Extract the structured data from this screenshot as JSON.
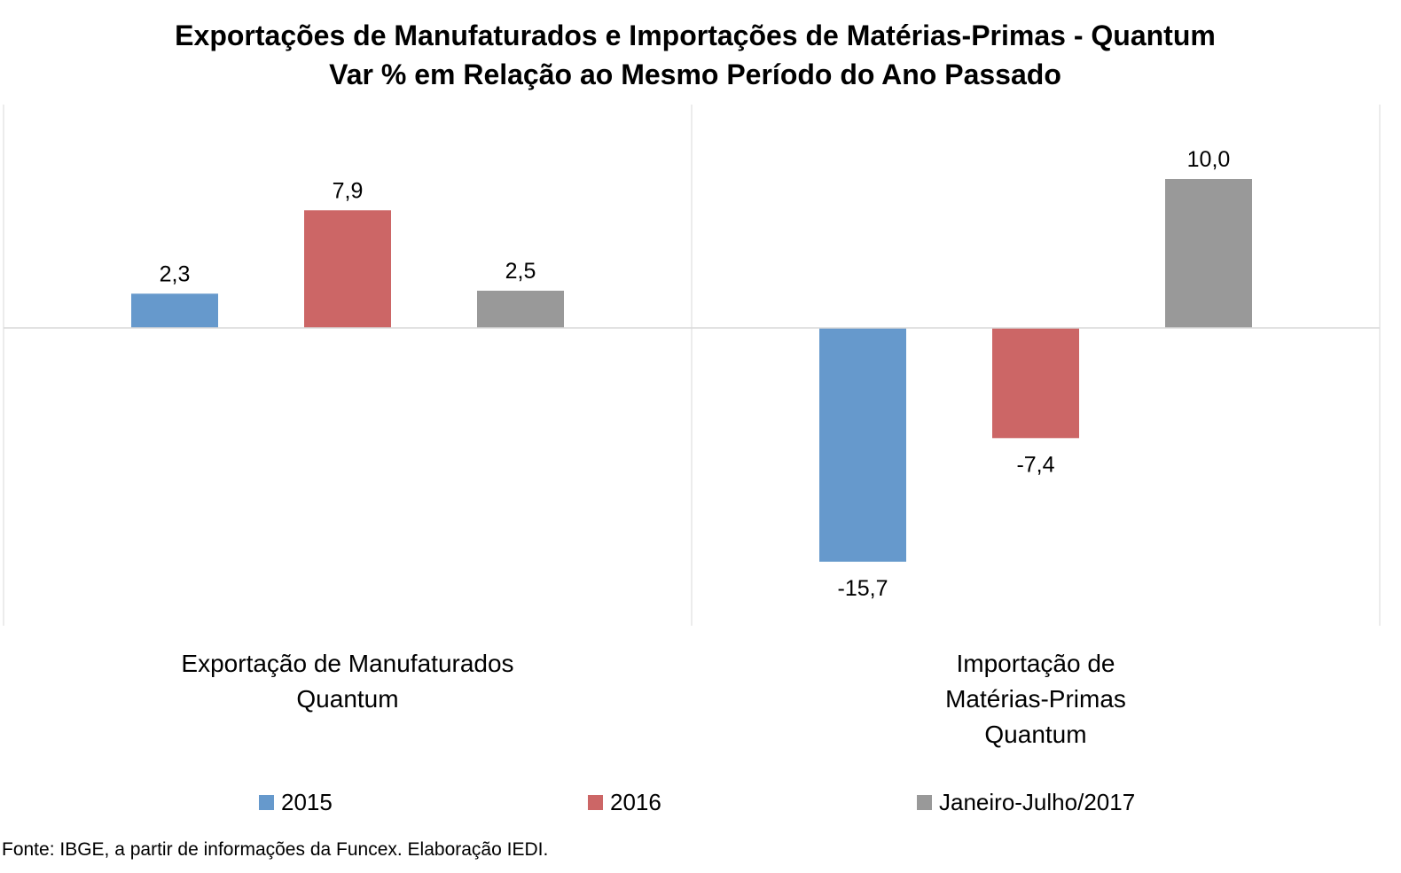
{
  "title": "Exportações de Manufaturados e Importações de Matérias-Primas - Quantum",
  "subtitle": "Var % em Relação ao Mesmo Período do Ano Passado",
  "source": "Fonte: IBGE, a partir de  informações da Funcex. Elaboração IEDI.",
  "chart_data": {
    "type": "bar",
    "title": "Exportações de Manufaturados e Importações de Matérias-Primas - Quantum",
    "subtitle": "Var % em Relação ao Mesmo Período do Ano Passado",
    "categories": [
      [
        "Exportação de Manufaturados",
        "Quantum"
      ],
      [
        "Importação de",
        "Matérias-Primas",
        "Quantum"
      ]
    ],
    "series": [
      {
        "name": "2015",
        "color": "#6699CC",
        "values": [
          2.3,
          -15.7
        ],
        "labels": [
          "2,3",
          "-15,7"
        ]
      },
      {
        "name": "2016",
        "color": "#CC6666",
        "values": [
          7.9,
          -7.4
        ],
        "labels": [
          "7,9",
          "-7,4"
        ]
      },
      {
        "name": "Janeiro-Julho/2017",
        "color": "#999999",
        "values": [
          2.5,
          10.0
        ],
        "labels": [
          "2,5",
          "10,0"
        ]
      }
    ],
    "ylim": [
      -20,
      15
    ],
    "grid": false,
    "legend": "bottom"
  }
}
